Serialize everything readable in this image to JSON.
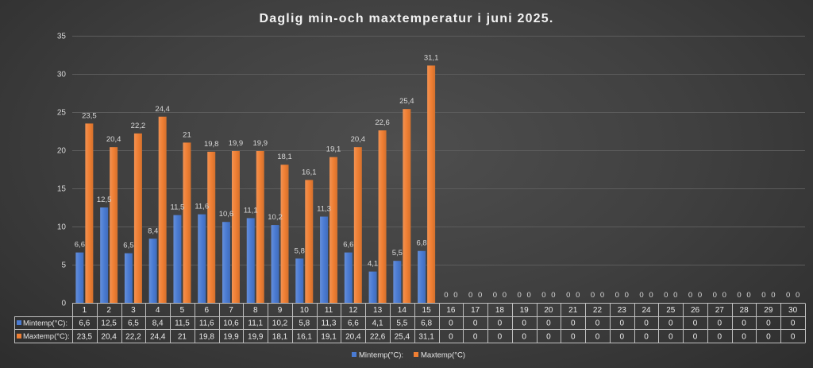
{
  "chart_data": {
    "type": "bar",
    "title": "Daglig min-och maxtemperatur i juni 2025.",
    "categories": [
      "1",
      "2",
      "3",
      "4",
      "5",
      "6",
      "7",
      "8",
      "9",
      "10",
      "11",
      "12",
      "13",
      "14",
      "15",
      "16",
      "17",
      "18",
      "19",
      "20",
      "21",
      "22",
      "23",
      "24",
      "25",
      "26",
      "27",
      "28",
      "29",
      "30"
    ],
    "series": [
      {
        "name": "Mintemp(°C):",
        "color": "#4a7bd3",
        "values": [
          6.6,
          12.5,
          6.5,
          8.4,
          11.5,
          11.6,
          10.6,
          11.1,
          10.2,
          5.8,
          11.3,
          6.6,
          4.1,
          5.5,
          6.8,
          0,
          0,
          0,
          0,
          0,
          0,
          0,
          0,
          0,
          0,
          0,
          0,
          0,
          0,
          0
        ]
      },
      {
        "name": "Maxtemp(°C)",
        "color": "#f07f33",
        "values": [
          23.5,
          20.4,
          22.2,
          24.4,
          21,
          19.8,
          19.9,
          19.9,
          18.1,
          16.1,
          19.1,
          20.4,
          22.6,
          25.4,
          31.1,
          0,
          0,
          0,
          0,
          0,
          0,
          0,
          0,
          0,
          0,
          0,
          0,
          0,
          0,
          0
        ]
      }
    ],
    "xlabel": "",
    "ylabel": "",
    "ylim": [
      0,
      35
    ],
    "yticks": [
      0,
      5,
      10,
      15,
      20,
      25,
      30,
      35
    ],
    "grid": true,
    "data_labels": true,
    "legend": "bottom",
    "data_table": {
      "row_labels": [
        "Mintemp(°C):",
        "Maxtemp(°C):"
      ]
    }
  }
}
